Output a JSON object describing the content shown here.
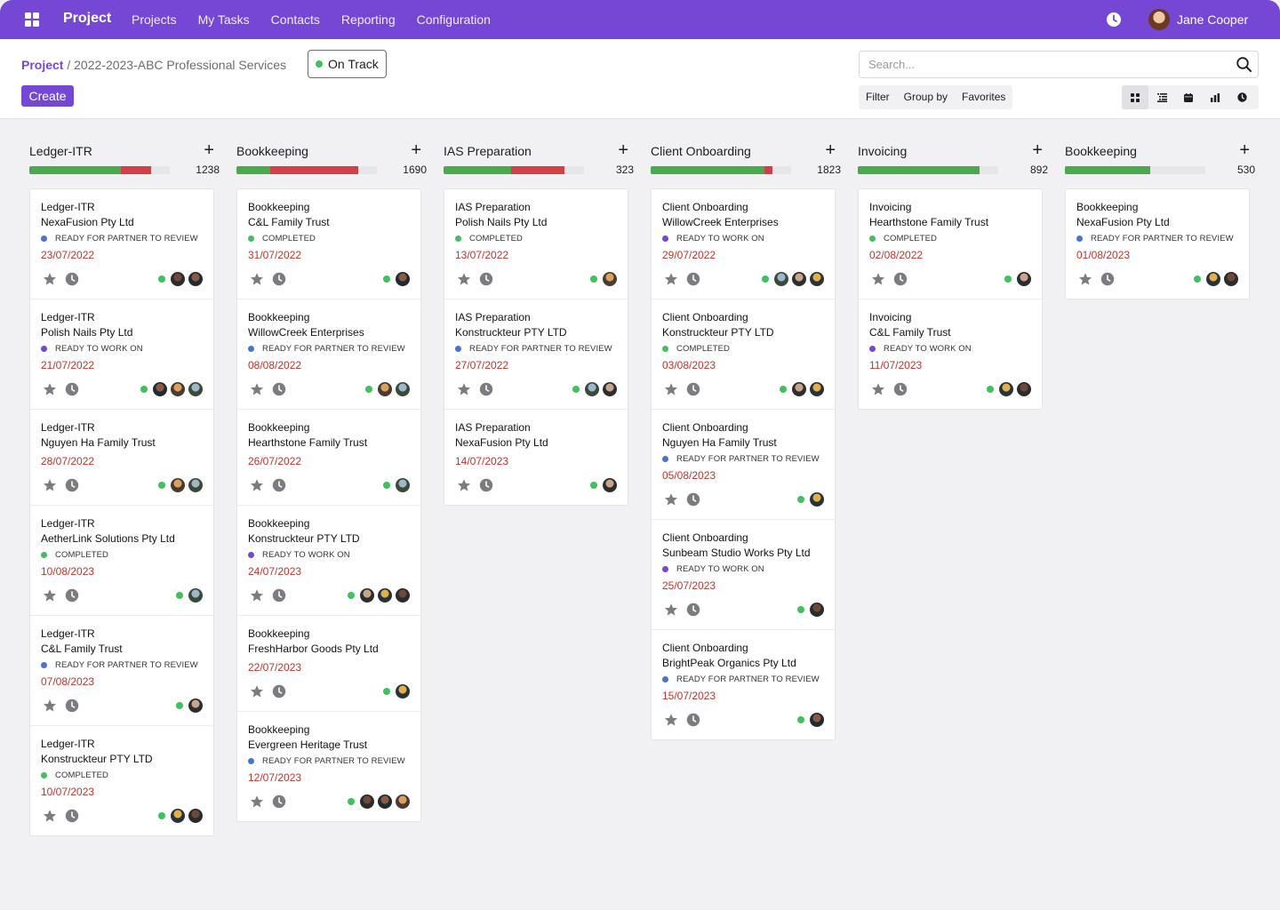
{
  "app": {
    "brand": "Project",
    "nav": [
      "Projects",
      "My Tasks",
      "Contacts",
      "Reporting",
      "Configuration"
    ],
    "user_name": "Jane Cooper"
  },
  "breadcrumb": {
    "root": "Project",
    "separator": " / ",
    "current": "2022-2023-ABC Professional Services"
  },
  "project_status": "On Track",
  "create_label": "Create",
  "search": {
    "placeholder": "Search..."
  },
  "filters": [
    "Filter",
    "Group by",
    "Favorites"
  ],
  "views": [
    "kanban-view-icon",
    "list-view-icon",
    "calendar-view-icon",
    "graph-view-icon",
    "activity-view-icon"
  ],
  "colors": {
    "accent": "#7646d4",
    "completed": "#3ec15e",
    "review": "#4a72d4",
    "ready": "#7646d4",
    "date": "#c2332b",
    "bar_green": "#48a94d",
    "bar_red": "#d43e46"
  },
  "columns": [
    {
      "title": "Ledger-ITR",
      "count": "1238",
      "progress": {
        "green": 0.65,
        "red": 0.22
      },
      "cards": [
        {
          "type": "Ledger-ITR",
          "client": "NexaFusion Pty Ltd",
          "status": "READY FOR PARTNER TO REVIEW",
          "status_kind": "review",
          "date": "23/07/2022",
          "avatars": 2
        },
        {
          "type": "Ledger-ITR",
          "client": "Polish Nails Pty Ltd",
          "status": "READY TO WORK ON",
          "status_kind": "ready",
          "date": "21/07/2022",
          "avatars": 3
        },
        {
          "type": "Ledger-ITR",
          "client": "Nguyen Ha Family Trust",
          "status": "",
          "status_kind": "",
          "date": "28/07/2022",
          "avatars": 2
        },
        {
          "type": "Ledger-ITR",
          "client": "AetherLink Solutions Pty Ltd",
          "status": "COMPLETED",
          "status_kind": "completed",
          "date": "10/08/2023",
          "avatars": 1
        },
        {
          "type": "Ledger-ITR",
          "client": "C&L Family Trust",
          "status": "READY FOR PARTNER TO REVIEW",
          "status_kind": "review",
          "date": "07/08/2023",
          "avatars": 1
        },
        {
          "type": "Ledger-ITR",
          "client": "Konstruckteur PTY LTD",
          "status": "COMPLETED",
          "status_kind": "completed",
          "date": "10/07/2023",
          "avatars": 2
        }
      ]
    },
    {
      "title": "Bookkeeping",
      "count": "1690",
      "progress": {
        "green": 0.24,
        "red": 0.63
      },
      "cards": [
        {
          "type": "Bookkeeping",
          "client": "C&L Family Trust",
          "status": "COMPLETED",
          "status_kind": "completed",
          "date": "31/07/2022",
          "avatars": 1
        },
        {
          "type": "Bookkeeping",
          "client": "WillowCreek Enterprises",
          "status": "READY FOR PARTNER TO REVIEW",
          "status_kind": "review",
          "date": "08/08/2022",
          "avatars": 2
        },
        {
          "type": "Bookkeeping",
          "client": "Hearthstone Family Trust",
          "status": "",
          "status_kind": "",
          "date": "26/07/2022",
          "avatars": 1
        },
        {
          "type": "Bookkeeping",
          "client": "Konstruckteur PTY LTD",
          "status": "READY TO WORK ON",
          "status_kind": "ready",
          "date": "24/07/2023",
          "avatars": 3
        },
        {
          "type": "Bookkeeping",
          "client": "FreshHarbor Goods Pty Ltd",
          "status": "",
          "status_kind": "",
          "date": "22/07/2023",
          "avatars": 1
        },
        {
          "type": "Bookkeeping",
          "client": "Evergreen Heritage Trust",
          "status": "READY FOR PARTNER TO REVIEW",
          "status_kind": "review",
          "date": "12/07/2023",
          "avatars": 3
        }
      ]
    },
    {
      "title": "IAS Preparation",
      "count": "323",
      "progress": {
        "green": 0.48,
        "red": 0.38
      },
      "cards": [
        {
          "type": "IAS Preparation",
          "client": "Polish Nails Pty Ltd",
          "status": "COMPLETED",
          "status_kind": "completed",
          "date": "13/07/2022",
          "avatars": 1
        },
        {
          "type": "IAS Preparation",
          "client": "Konstruckteur PTY LTD",
          "status": "READY FOR PARTNER TO REVIEW",
          "status_kind": "review",
          "date": "27/07/2022",
          "avatars": 2
        },
        {
          "type": "IAS Preparation",
          "client": "NexaFusion Pty Ltd",
          "status": "",
          "status_kind": "",
          "date": "14/07/2023",
          "avatars": 1
        }
      ]
    },
    {
      "title": "Client Onboarding",
      "count": "1823",
      "progress": {
        "green": 0.81,
        "red": 0.06
      },
      "cards": [
        {
          "type": "Client Onboarding",
          "client": "WillowCreek Enterprises",
          "status": "READY TO WORK ON",
          "status_kind": "ready",
          "date": "29/07/2022",
          "avatars": 3
        },
        {
          "type": "Client Onboarding",
          "client": "Konstruckteur PTY LTD",
          "status": "COMPLETED",
          "status_kind": "completed",
          "date": "03/08/2023",
          "avatars": 2
        },
        {
          "type": "Client Onboarding",
          "client": "Nguyen Ha Family Trust",
          "status": "READY FOR PARTNER TO REVIEW",
          "status_kind": "review",
          "date": "05/08/2023",
          "avatars": 1
        },
        {
          "type": "Client Onboarding",
          "client": "Sunbeam Studio Works Pty Ltd",
          "status": "READY TO WORK ON",
          "status_kind": "ready",
          "date": "25/07/2023",
          "avatars": 1
        },
        {
          "type": "Client Onboarding",
          "client": "BrightPeak Organics Pty Ltd",
          "status": "READY FOR PARTNER TO REVIEW",
          "status_kind": "review",
          "date": "15/07/2023",
          "avatars": 1
        }
      ]
    },
    {
      "title": "Invoicing",
      "count": "892",
      "progress": {
        "green": 0.87,
        "red": 0
      },
      "cards": [
        {
          "type": "Invoicing",
          "client": "Hearthstone Family Trust",
          "status": "COMPLETED",
          "status_kind": "completed",
          "date": "02/08/2022",
          "avatars": 1
        },
        {
          "type": "Invoicing",
          "client": "C&L Family Trust",
          "status": "READY TO WORK ON",
          "status_kind": "ready",
          "date": "11/07/2023",
          "avatars": 2
        }
      ]
    },
    {
      "title": "Bookkeeping",
      "count": "530",
      "progress": {
        "green": 0.61,
        "red": 0
      },
      "cards": [
        {
          "type": "Bookkeeping",
          "client": "NexaFusion Pty Ltd",
          "status": "READY FOR PARTNER TO REVIEW",
          "status_kind": "review",
          "date": "01/08/2023",
          "avatars": 2
        }
      ]
    }
  ]
}
